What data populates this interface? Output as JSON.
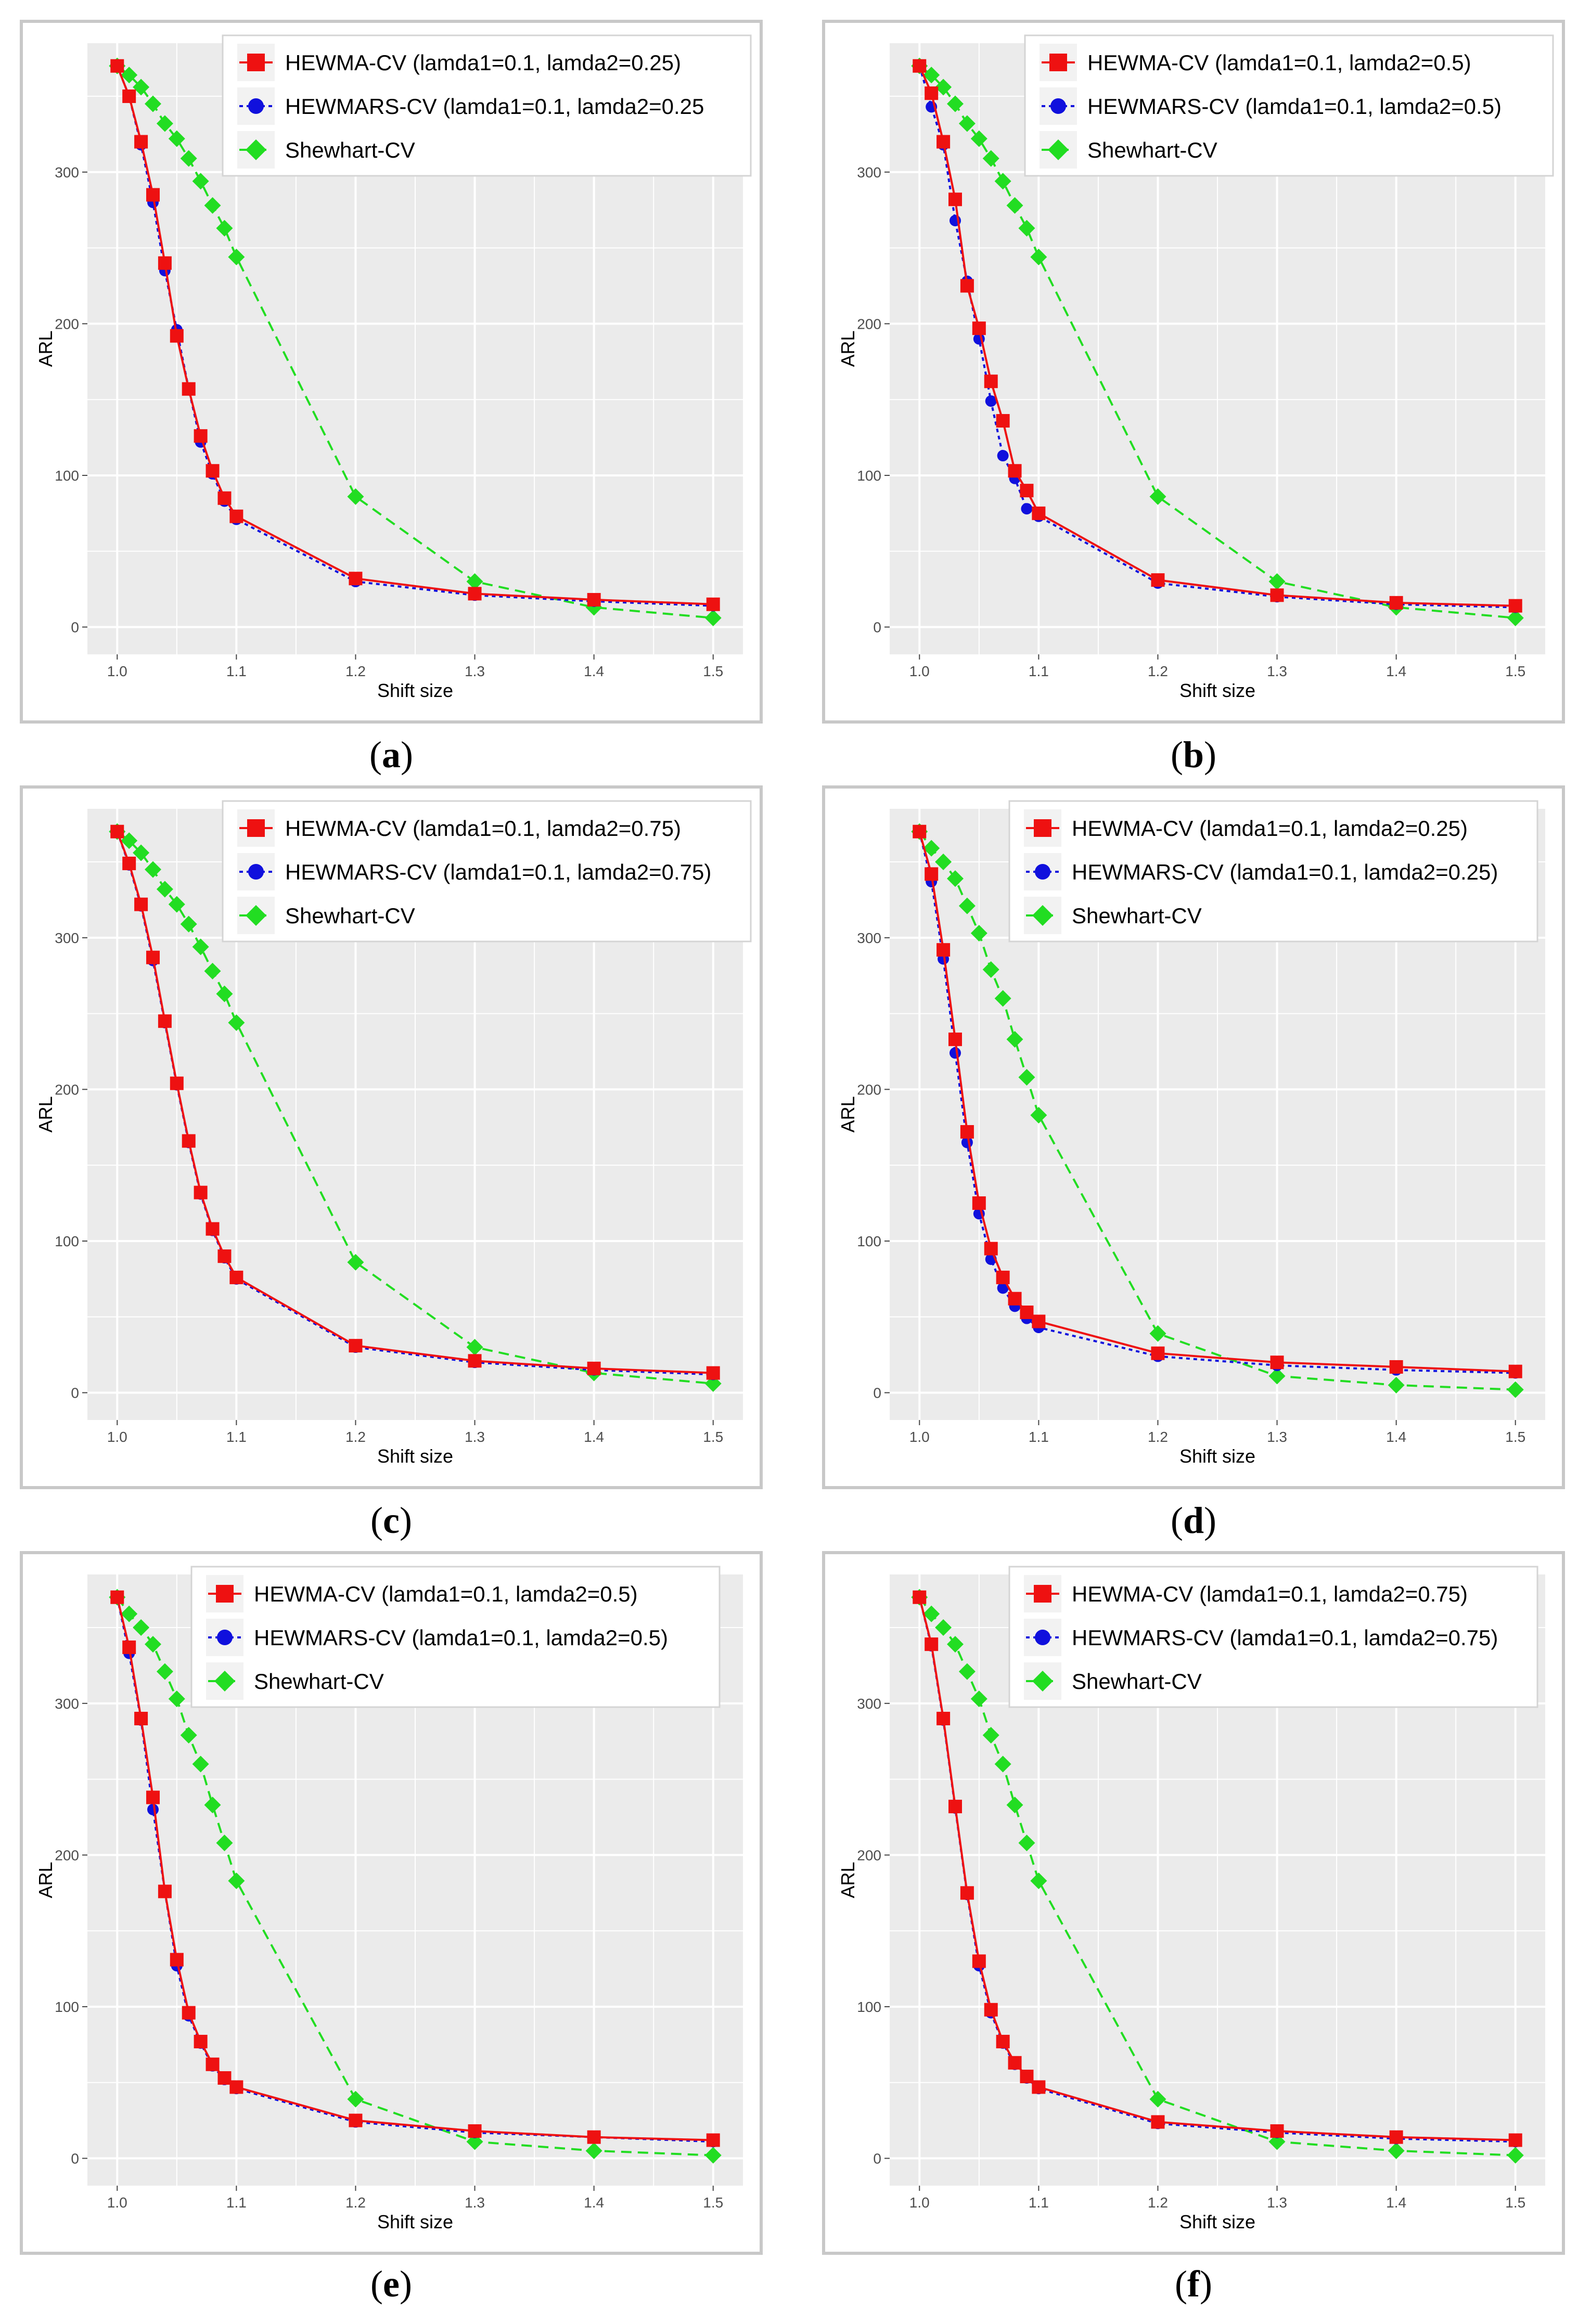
{
  "figure": {
    "colors": {
      "hewma": "#ee1111",
      "hewmars": "#1010dd",
      "shewhart": "#22dd22",
      "panel_bg": "#ebebeb",
      "grid": "#ffffff"
    }
  },
  "chart_data": [
    {
      "type": "line",
      "caption": "a",
      "xlabel": "Shift size",
      "ylabel": "ARL",
      "xlim": [
        0.975,
        1.525
      ],
      "ylim": [
        -18,
        385
      ],
      "xticks": [
        1.0,
        1.1,
        1.2,
        1.3,
        1.4,
        1.5
      ],
      "xtick_labels": [
        "1.0",
        "1.1",
        "1.2",
        "1.3",
        "1.4",
        "1.5"
      ],
      "yticks": [
        0,
        100,
        200,
        300
      ],
      "ytick_labels": [
        "0",
        "100",
        "200",
        "300"
      ],
      "legend_position": "top-right",
      "series": [
        {
          "name": "HEWMA-CV (lamda1=0.1, lamda2=0.25)",
          "style": "hewma",
          "x": [
            1.0,
            1.01,
            1.02,
            1.03,
            1.04,
            1.05,
            1.06,
            1.07,
            1.08,
            1.09,
            1.1,
            1.2,
            1.3,
            1.4,
            1.5
          ],
          "values": [
            370,
            350,
            320,
            285,
            240,
            192,
            157,
            126,
            103,
            85,
            73,
            32,
            22,
            18,
            15
          ]
        },
        {
          "name": "HEWMARS-CV (lamda1=0.1, lamda2=0.25",
          "style": "hewmars",
          "x": [
            1.0,
            1.01,
            1.02,
            1.03,
            1.04,
            1.05,
            1.06,
            1.07,
            1.08,
            1.09,
            1.1,
            1.2,
            1.3,
            1.4,
            1.5
          ],
          "values": [
            370,
            350,
            318,
            280,
            235,
            196,
            157,
            122,
            101,
            83,
            71,
            30,
            21,
            17,
            14
          ]
        },
        {
          "name": "Shewhart-CV",
          "style": "shewhart",
          "x": [
            1.0,
            1.01,
            1.02,
            1.03,
            1.04,
            1.05,
            1.06,
            1.07,
            1.08,
            1.09,
            1.1,
            1.2,
            1.3,
            1.4,
            1.5
          ],
          "values": [
            370,
            364,
            356,
            345,
            332,
            322,
            309,
            294,
            278,
            263,
            244,
            86,
            30,
            13,
            6
          ]
        }
      ]
    },
    {
      "type": "line",
      "caption": "b",
      "xlabel": "Shift size",
      "ylabel": "ARL",
      "xlim": [
        0.975,
        1.525
      ],
      "ylim": [
        -18,
        385
      ],
      "xticks": [
        1.0,
        1.1,
        1.2,
        1.3,
        1.4,
        1.5
      ],
      "xtick_labels": [
        "1.0",
        "1.1",
        "1.2",
        "1.3",
        "1.4",
        "1.5"
      ],
      "yticks": [
        0,
        100,
        200,
        300
      ],
      "ytick_labels": [
        "0",
        "100",
        "200",
        "300"
      ],
      "legend_position": "top-right",
      "series": [
        {
          "name": "HEWMA-CV (lamda1=0.1, lamda2=0.5)",
          "style": "hewma",
          "x": [
            1.0,
            1.01,
            1.02,
            1.03,
            1.04,
            1.05,
            1.06,
            1.07,
            1.08,
            1.09,
            1.1,
            1.2,
            1.3,
            1.4,
            1.5
          ],
          "values": [
            370,
            352,
            320,
            282,
            225,
            197,
            162,
            136,
            103,
            90,
            75,
            31,
            21,
            16,
            14
          ]
        },
        {
          "name": "HEWMARS-CV (lamda1=0.1, lamda2=0.5)",
          "style": "hewmars",
          "x": [
            1.0,
            1.01,
            1.02,
            1.03,
            1.04,
            1.05,
            1.06,
            1.07,
            1.08,
            1.09,
            1.1,
            1.2,
            1.3,
            1.4,
            1.5
          ],
          "values": [
            370,
            343,
            318,
            268,
            228,
            190,
            149,
            113,
            98,
            78,
            73,
            29,
            20,
            15,
            13
          ]
        },
        {
          "name": "Shewhart-CV",
          "style": "shewhart",
          "x": [
            1.0,
            1.01,
            1.02,
            1.03,
            1.04,
            1.05,
            1.06,
            1.07,
            1.08,
            1.09,
            1.1,
            1.2,
            1.3,
            1.4,
            1.5
          ],
          "values": [
            370,
            364,
            356,
            345,
            332,
            322,
            309,
            294,
            278,
            263,
            244,
            86,
            30,
            13,
            6
          ]
        }
      ]
    },
    {
      "type": "line",
      "caption": "c",
      "xlabel": "Shift size",
      "ylabel": "ARL",
      "xlim": [
        0.975,
        1.525
      ],
      "ylim": [
        -18,
        385
      ],
      "xticks": [
        1.0,
        1.1,
        1.2,
        1.3,
        1.4,
        1.5
      ],
      "xtick_labels": [
        "1.0",
        "1.1",
        "1.2",
        "1.3",
        "1.4",
        "1.5"
      ],
      "yticks": [
        0,
        100,
        200,
        300
      ],
      "ytick_labels": [
        "0",
        "100",
        "200",
        "300"
      ],
      "legend_position": "top-right",
      "series": [
        {
          "name": "HEWMA-CV (lamda1=0.1, lamda2=0.75)",
          "style": "hewma",
          "x": [
            1.0,
            1.01,
            1.02,
            1.03,
            1.04,
            1.05,
            1.06,
            1.07,
            1.08,
            1.09,
            1.1,
            1.2,
            1.3,
            1.4,
            1.5
          ],
          "values": [
            370,
            349,
            322,
            287,
            245,
            204,
            166,
            132,
            108,
            90,
            76,
            31,
            21,
            16,
            13
          ]
        },
        {
          "name": "HEWMARS-CV (lamda1=0.1, lamda2=0.75)",
          "style": "hewmars",
          "x": [
            1.0,
            1.01,
            1.02,
            1.03,
            1.04,
            1.05,
            1.06,
            1.07,
            1.08,
            1.09,
            1.1,
            1.2,
            1.3,
            1.4,
            1.5
          ],
          "values": [
            370,
            348,
            321,
            285,
            244,
            203,
            165,
            131,
            107,
            89,
            75,
            30,
            20,
            15,
            12
          ]
        },
        {
          "name": "Shewhart-CV",
          "style": "shewhart",
          "x": [
            1.0,
            1.01,
            1.02,
            1.03,
            1.04,
            1.05,
            1.06,
            1.07,
            1.08,
            1.09,
            1.1,
            1.2,
            1.3,
            1.4,
            1.5
          ],
          "values": [
            370,
            364,
            356,
            345,
            332,
            322,
            309,
            294,
            278,
            263,
            244,
            86,
            30,
            13,
            6
          ]
        }
      ]
    },
    {
      "type": "line",
      "caption": "d",
      "xlabel": "Shift size",
      "ylabel": "ARL",
      "xlim": [
        0.975,
        1.525
      ],
      "ylim": [
        -18,
        385
      ],
      "xticks": [
        1.0,
        1.1,
        1.2,
        1.3,
        1.4,
        1.5
      ],
      "xtick_labels": [
        "1.0",
        "1.1",
        "1.2",
        "1.3",
        "1.4",
        "1.5"
      ],
      "yticks": [
        0,
        100,
        200,
        300
      ],
      "ytick_labels": [
        "0",
        "100",
        "200",
        "300"
      ],
      "legend_position": "top-right",
      "series": [
        {
          "name": "HEWMA-CV (lamda1=0.1, lamda2=0.25)",
          "style": "hewma",
          "x": [
            1.0,
            1.01,
            1.02,
            1.03,
            1.04,
            1.05,
            1.06,
            1.07,
            1.08,
            1.09,
            1.1,
            1.2,
            1.3,
            1.4,
            1.5
          ],
          "values": [
            370,
            342,
            292,
            233,
            172,
            125,
            95,
            76,
            62,
            53,
            47,
            26,
            20,
            17,
            14
          ]
        },
        {
          "name": "HEWMARS-CV (lamda1=0.1, lamda2=0.25)",
          "style": "hewmars",
          "x": [
            1.0,
            1.01,
            1.02,
            1.03,
            1.04,
            1.05,
            1.06,
            1.07,
            1.08,
            1.09,
            1.1,
            1.2,
            1.3,
            1.4,
            1.5
          ],
          "values": [
            370,
            337,
            286,
            224,
            165,
            118,
            88,
            69,
            57,
            49,
            43,
            24,
            18,
            15,
            13
          ]
        },
        {
          "name": "Shewhart-CV",
          "style": "shewhart",
          "x": [
            1.0,
            1.01,
            1.02,
            1.03,
            1.04,
            1.05,
            1.06,
            1.07,
            1.08,
            1.09,
            1.1,
            1.2,
            1.3,
            1.4,
            1.5
          ],
          "values": [
            370,
            359,
            350,
            339,
            321,
            303,
            279,
            260,
            233,
            208,
            183,
            39,
            11,
            5,
            2
          ]
        }
      ]
    },
    {
      "type": "line",
      "caption": "e",
      "xlabel": "Shift size",
      "ylabel": "ARL",
      "xlim": [
        0.975,
        1.525
      ],
      "ylim": [
        -18,
        385
      ],
      "xticks": [
        1.0,
        1.1,
        1.2,
        1.3,
        1.4,
        1.5
      ],
      "xtick_labels": [
        "1.0",
        "1.1",
        "1.2",
        "1.3",
        "1.4",
        "1.5"
      ],
      "yticks": [
        0,
        100,
        200,
        300
      ],
      "ytick_labels": [
        "0",
        "100",
        "200",
        "300"
      ],
      "legend_position": "top-right",
      "series": [
        {
          "name": "HEWMA-CV (lamda1=0.1, lamda2=0.5)",
          "style": "hewma",
          "x": [
            1.0,
            1.01,
            1.02,
            1.03,
            1.04,
            1.05,
            1.06,
            1.07,
            1.08,
            1.09,
            1.1,
            1.2,
            1.3,
            1.4,
            1.5
          ],
          "values": [
            370,
            337,
            290,
            238,
            176,
            131,
            96,
            77,
            62,
            53,
            47,
            25,
            18,
            14,
            12
          ]
        },
        {
          "name": "HEWMARS-CV (lamda1=0.1, lamda2=0.5)",
          "style": "hewmars",
          "x": [
            1.0,
            1.01,
            1.02,
            1.03,
            1.04,
            1.05,
            1.06,
            1.07,
            1.08,
            1.09,
            1.1,
            1.2,
            1.3,
            1.4,
            1.5
          ],
          "values": [
            370,
            333,
            289,
            230,
            176,
            127,
            94,
            76,
            61,
            52,
            46,
            24,
            17,
            14,
            11
          ]
        },
        {
          "name": "Shewhart-CV",
          "style": "shewhart",
          "x": [
            1.0,
            1.01,
            1.02,
            1.03,
            1.04,
            1.05,
            1.06,
            1.07,
            1.08,
            1.09,
            1.1,
            1.2,
            1.3,
            1.4,
            1.5
          ],
          "values": [
            370,
            359,
            350,
            339,
            321,
            303,
            279,
            260,
            233,
            208,
            183,
            39,
            11,
            5,
            2
          ]
        }
      ]
    },
    {
      "type": "line",
      "caption": "f",
      "xlabel": "Shift size",
      "ylabel": "ARL",
      "xlim": [
        0.975,
        1.525
      ],
      "ylim": [
        -18,
        385
      ],
      "xticks": [
        1.0,
        1.1,
        1.2,
        1.3,
        1.4,
        1.5
      ],
      "xtick_labels": [
        "1.0",
        "1.1",
        "1.2",
        "1.3",
        "1.4",
        "1.5"
      ],
      "yticks": [
        0,
        100,
        200,
        300
      ],
      "ytick_labels": [
        "0",
        "100",
        "200",
        "300"
      ],
      "legend_position": "top-right",
      "series": [
        {
          "name": "HEWMA-CV (lamda1=0.1, lamda2=0.75)",
          "style": "hewma",
          "x": [
            1.0,
            1.01,
            1.02,
            1.03,
            1.04,
            1.05,
            1.06,
            1.07,
            1.08,
            1.09,
            1.1,
            1.2,
            1.3,
            1.4,
            1.5
          ],
          "values": [
            370,
            339,
            290,
            232,
            175,
            130,
            98,
            77,
            63,
            54,
            47,
            24,
            18,
            14,
            12
          ]
        },
        {
          "name": "HEWMARS-CV (lamda1=0.1, lamda2=0.75)",
          "style": "hewmars",
          "x": [
            1.0,
            1.01,
            1.02,
            1.03,
            1.04,
            1.05,
            1.06,
            1.07,
            1.08,
            1.09,
            1.1,
            1.2,
            1.3,
            1.4,
            1.5
          ],
          "values": [
            370,
            338,
            289,
            231,
            174,
            127,
            96,
            76,
            62,
            53,
            46,
            23,
            17,
            13,
            11
          ]
        },
        {
          "name": "Shewhart-CV",
          "style": "shewhart",
          "x": [
            1.0,
            1.01,
            1.02,
            1.03,
            1.04,
            1.05,
            1.06,
            1.07,
            1.08,
            1.09,
            1.1,
            1.2,
            1.3,
            1.4,
            1.5
          ],
          "values": [
            370,
            359,
            350,
            339,
            321,
            303,
            279,
            260,
            233,
            208,
            183,
            39,
            11,
            5,
            2
          ]
        }
      ]
    }
  ]
}
